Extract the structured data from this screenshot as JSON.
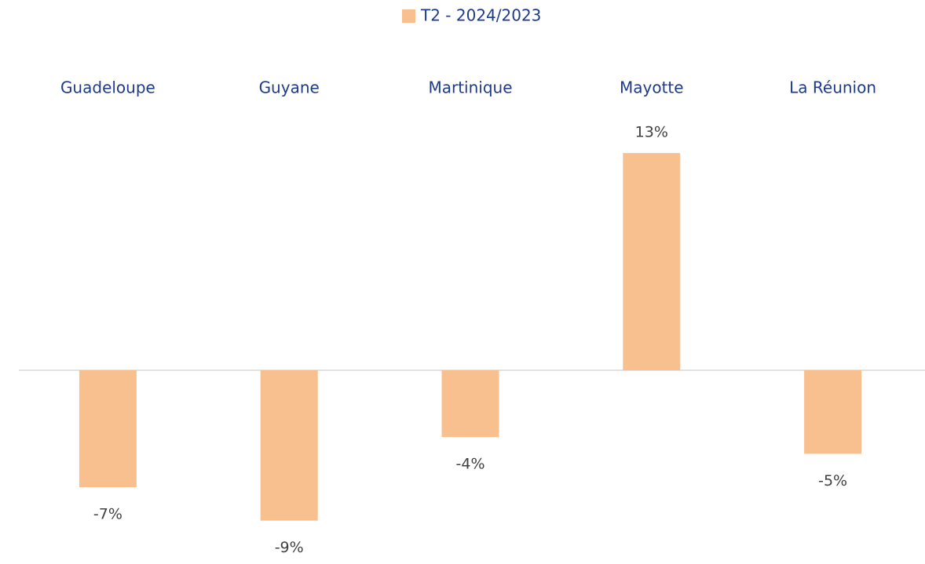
{
  "chart_data": {
    "type": "bar",
    "legend": "T2 - 2024/2023",
    "categories": [
      "Guadeloupe",
      "Guyane",
      "Martinique",
      "Mayotte",
      "La Réunion"
    ],
    "values": [
      -7,
      -9,
      -4,
      13,
      -5
    ],
    "value_labels": [
      "-7%",
      "-9%",
      "-4%",
      "13%",
      "-5%"
    ],
    "color": "#f9c08f",
    "category_color": "#1e3a8a",
    "legend_position": "top"
  }
}
